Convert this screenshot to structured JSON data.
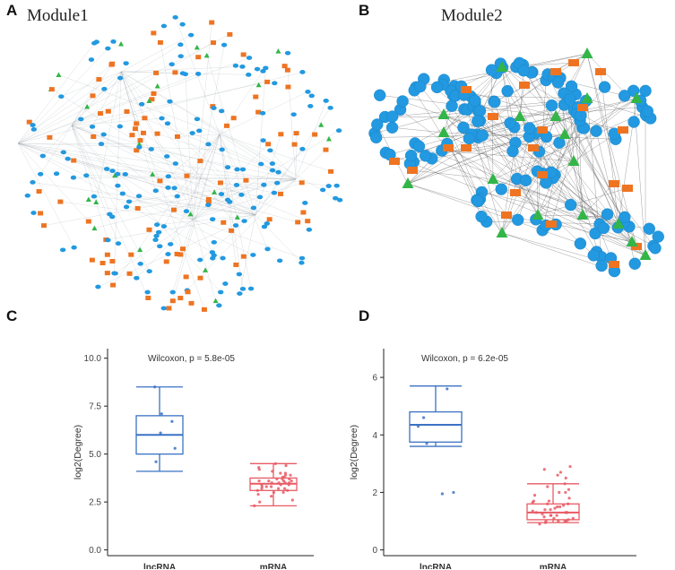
{
  "panels": {
    "a": {
      "letter": "A",
      "title": "Module1"
    },
    "b": {
      "letter": "B",
      "title": "Module2"
    },
    "c": {
      "letter": "C"
    },
    "d": {
      "letter": "D"
    }
  },
  "colors": {
    "lncrna_node": "#ee7422",
    "mrna_node": "#2299e0",
    "mirna_node": "#33b548",
    "lncrna_box": "#3a72c4",
    "mrna_box": "#e75a64",
    "edge": "#9aa3a8"
  },
  "chart_data": [
    {
      "type": "boxplot",
      "panel": "C",
      "ylabel": "log2(Degree)",
      "xlabel": "",
      "categories": [
        "lncRNA",
        "mRNA"
      ],
      "ylim": [
        -0.3,
        10.5
      ],
      "yticks": [
        "0.0",
        "2.5",
        "5.0",
        "7.5",
        "10.0"
      ],
      "annotation": "Wilcoxon, p = 5.8e-05",
      "boxes": [
        {
          "name": "lncRNA",
          "whisker_low": 4.1,
          "q1": 5.0,
          "median": 6.0,
          "q3": 7.0,
          "whisker_high": 8.5,
          "points": [
            4.6,
            5.3,
            6.1,
            6.7,
            7.1,
            8.5
          ]
        },
        {
          "name": "mRNA",
          "whisker_low": 2.3,
          "q1": 3.1,
          "median": 3.45,
          "q3": 3.75,
          "whisker_high": 4.5,
          "points": [
            2.3,
            2.5,
            2.6,
            2.8,
            2.9,
            3.0,
            3.0,
            3.1,
            3.1,
            3.2,
            3.2,
            3.3,
            3.3,
            3.3,
            3.4,
            3.4,
            3.4,
            3.5,
            3.5,
            3.5,
            3.5,
            3.6,
            3.6,
            3.6,
            3.7,
            3.7,
            3.7,
            3.8,
            3.8,
            3.9,
            3.9,
            4.0,
            4.0,
            4.1,
            4.2,
            4.3,
            4.4,
            4.5,
            3.2,
            3.6
          ]
        }
      ]
    },
    {
      "type": "boxplot",
      "panel": "D",
      "ylabel": "log2(Degree)",
      "xlabel": "",
      "categories": [
        "lncRNA",
        "mRNA"
      ],
      "ylim": [
        -0.2,
        7.0
      ],
      "yticks": [
        "0",
        "2",
        "4",
        "6"
      ],
      "annotation": "Wilcoxon, p = 6.2e-05",
      "boxes": [
        {
          "name": "lncRNA",
          "whisker_low": 3.6,
          "q1": 3.75,
          "median": 4.35,
          "q3": 4.8,
          "whisker_high": 5.7,
          "points": [
            1.95,
            2.0,
            3.7,
            4.3,
            4.6,
            5.6
          ]
        },
        {
          "name": "mRNA",
          "whisker_low": 0.95,
          "q1": 1.05,
          "median": 1.3,
          "q3": 1.6,
          "whisker_high": 2.3,
          "points": [
            0.9,
            0.95,
            1.0,
            1.0,
            1.0,
            1.05,
            1.1,
            1.1,
            1.15,
            1.2,
            1.2,
            1.2,
            1.25,
            1.3,
            1.3,
            1.3,
            1.35,
            1.4,
            1.4,
            1.45,
            1.5,
            1.5,
            1.55,
            1.6,
            1.6,
            1.65,
            1.7,
            1.7,
            1.8,
            1.9,
            2.0,
            2.0,
            2.1,
            2.2,
            2.3,
            2.5,
            2.6,
            2.7,
            2.8,
            2.9,
            1.0,
            1.3
          ]
        }
      ]
    }
  ]
}
